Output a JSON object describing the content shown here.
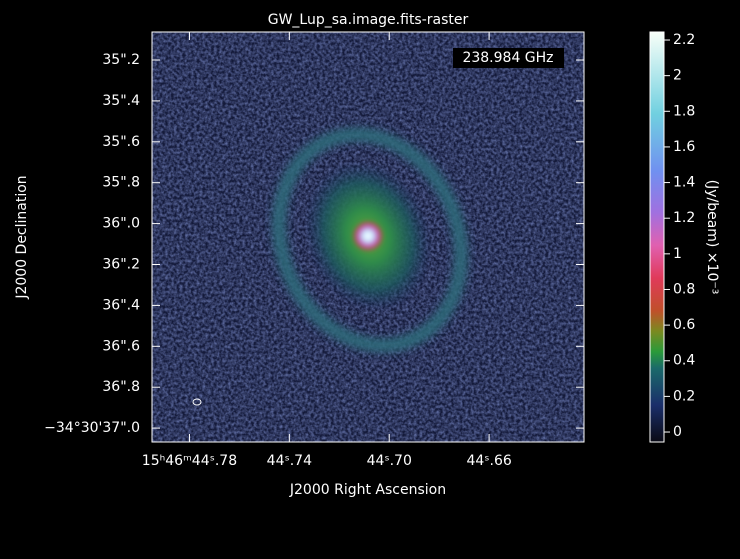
{
  "chart_data": {
    "type": "raster",
    "title": "GW_Lup_sa.image.fits-raster",
    "annotation": "238.984 GHz",
    "x_label": "J2000 Right Ascension",
    "y_label": "J2000 Declination",
    "colorbar_label": "(Jy/beam)  ×10⁻³",
    "xlim": [
      44.795,
      44.622
    ],
    "xticks": [
      {
        "value": 44.78,
        "label": "15ʰ46ᵐ44ˢ.78"
      },
      {
        "value": 44.74,
        "label": "44ˢ.74"
      },
      {
        "value": 44.7,
        "label": "44ˢ.70"
      },
      {
        "value": 44.66,
        "label": "44ˢ.66"
      }
    ],
    "ylim": [
      37.068,
      35.063
    ],
    "yticks": [
      {
        "value": 35.2,
        "label": "35\".2"
      },
      {
        "value": 35.4,
        "label": "35\".4"
      },
      {
        "value": 35.6,
        "label": "35\".6"
      },
      {
        "value": 35.8,
        "label": "35\".8"
      },
      {
        "value": 36.0,
        "label": "36\".0"
      },
      {
        "value": 36.2,
        "label": "36\".2"
      },
      {
        "value": 36.4,
        "label": "36\".4"
      },
      {
        "value": 36.6,
        "label": "36\".6"
      },
      {
        "value": 36.8,
        "label": "36\".8"
      },
      {
        "value": 37.0,
        "label": "−34°30'37\".0"
      }
    ],
    "clim": [
      -0.056,
      2.245
    ],
    "cticks": [
      0,
      0.2,
      0.4,
      0.6,
      0.8,
      1,
      1.2,
      1.4,
      1.6,
      1.8,
      2,
      2.2
    ]
  }
}
